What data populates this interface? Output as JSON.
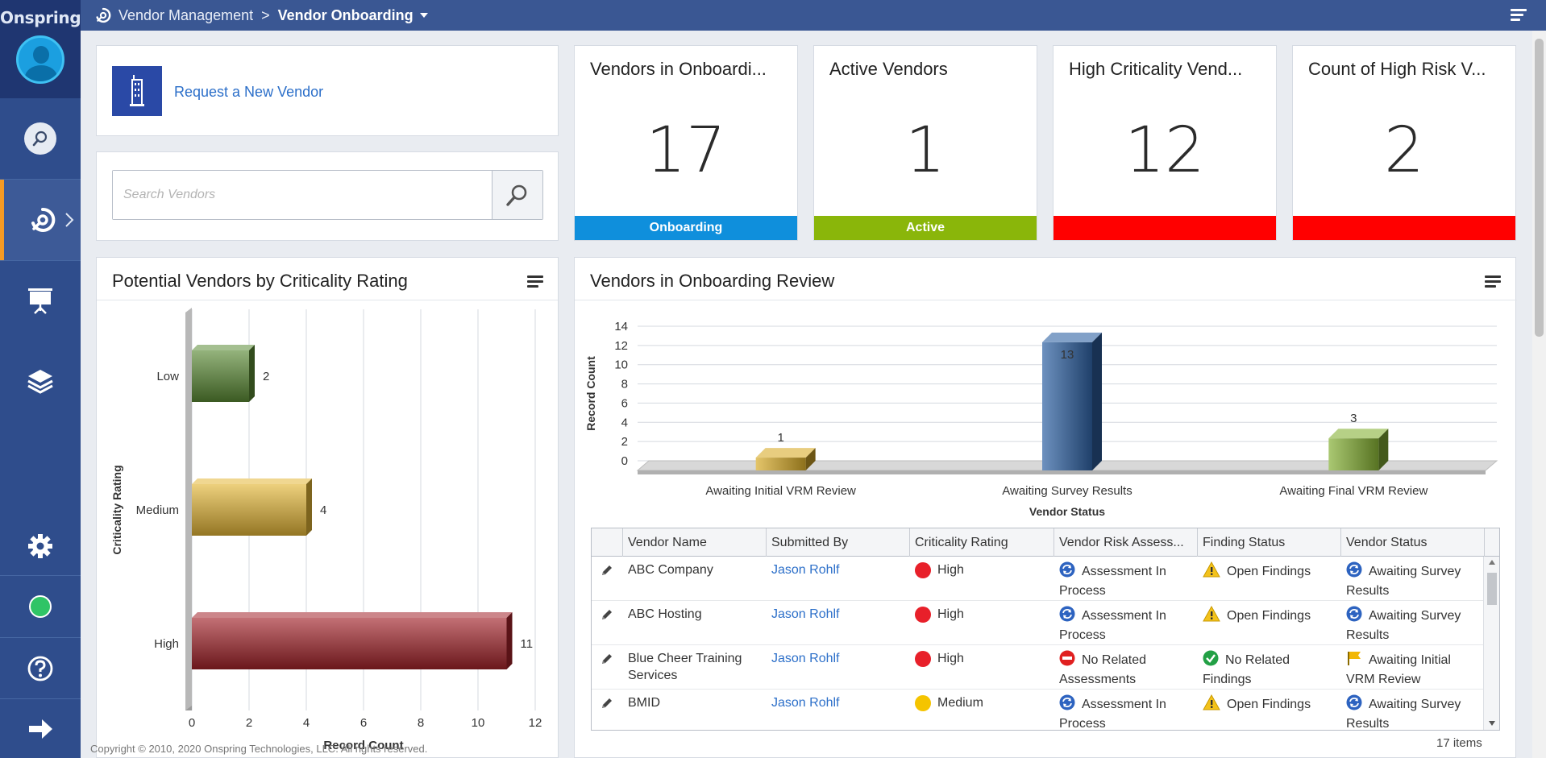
{
  "brand": {
    "name": "Onspring"
  },
  "breadcrumb": {
    "parent": "Vendor Management",
    "separator": ">",
    "current": "Vendor Onboarding"
  },
  "request": {
    "label": "Request a New Vendor"
  },
  "search": {
    "placeholder": "Search Vendors"
  },
  "kpis": [
    {
      "title": "Vendors in Onboardi...",
      "value": "17",
      "bar_label": "Onboarding",
      "color": "#0f8fdc"
    },
    {
      "title": "Active Vendors",
      "value": "1",
      "bar_label": "Active",
      "color": "#8ab60a"
    },
    {
      "title": "High Criticality Vend...",
      "value": "12",
      "bar_label": "",
      "color": "#ff0000"
    },
    {
      "title": "Count of High Risk V...",
      "value": "2",
      "bar_label": "",
      "color": "#ff0000"
    }
  ],
  "left_chart": {
    "panel_title": "Potential Vendors by Criticality Rating",
    "chart_data": {
      "type": "bar",
      "orientation": "horizontal",
      "categories": [
        "Low",
        "Medium",
        "High"
      ],
      "values": [
        2,
        4,
        11
      ],
      "colors": [
        "#5a8a35",
        "#e4b637",
        "#a3232a"
      ],
      "ylabel": "Criticality Rating",
      "xlabel": "Record Count",
      "xlim": [
        0,
        12
      ],
      "ticks": [
        "0",
        "2",
        "4",
        "6",
        "8",
        "10",
        "12"
      ]
    }
  },
  "right_chart": {
    "panel_title": "Vendors in Onboarding Review",
    "chart_data": {
      "type": "bar",
      "categories": [
        "Awaiting Initial VRM Review",
        "Awaiting Survey Results",
        "Awaiting Final VRM Review"
      ],
      "values": [
        1,
        13,
        3
      ],
      "colors": [
        "#d9ac2a",
        "#2f62a3",
        "#86b135"
      ],
      "xlabel": "Vendor Status",
      "ylabel": "Record Count",
      "ylim": [
        0,
        14
      ],
      "ticks": [
        "0",
        "2",
        "4",
        "6",
        "8",
        "10",
        "12",
        "14"
      ]
    }
  },
  "table": {
    "columns": [
      "Vendor Name",
      "Submitted By",
      "Criticality Rating",
      "Vendor Risk Assess...",
      "Finding Status",
      "Vendor Status"
    ],
    "rows": [
      {
        "name": "ABC Company",
        "submitted_by": "Jason Rohlf",
        "criticality": "High",
        "crit_color": "#e8202a",
        "risk_icon": "refresh-icon",
        "risk": "Assessment In Process",
        "finding_icon": "warning-icon",
        "finding": "Open Findings",
        "status_icon": "refresh-icon",
        "status": "Awaiting Survey Results"
      },
      {
        "name": "ABC Hosting",
        "submitted_by": "Jason Rohlf",
        "criticality": "High",
        "crit_color": "#e8202a",
        "risk_icon": "refresh-icon",
        "risk": "Assessment In Process",
        "finding_icon": "warning-icon",
        "finding": "Open Findings",
        "status_icon": "refresh-icon",
        "status": "Awaiting Survey Results"
      },
      {
        "name": "Blue Cheer Training Services",
        "submitted_by": "Jason Rohlf",
        "criticality": "High",
        "crit_color": "#e8202a",
        "risk_icon": "no-entry-icon",
        "risk": "No Related Assessments",
        "finding_icon": "check-icon",
        "finding": "No Related Findings",
        "status_icon": "flag-icon",
        "status": "Awaiting Initial VRM Review"
      },
      {
        "name": "BMID",
        "submitted_by": "Jason Rohlf",
        "criticality": "Medium",
        "crit_color": "#f5c400",
        "risk_icon": "refresh-icon",
        "risk": "Assessment In Process",
        "finding_icon": "warning-icon",
        "finding": "Open Findings",
        "status_icon": "refresh-icon",
        "status": "Awaiting Survey Results"
      }
    ],
    "count_label": "17 items"
  },
  "footer": {
    "copyright": "Copyright © 2010, 2020 Onspring Technologies, LLC. All rights reserved."
  }
}
